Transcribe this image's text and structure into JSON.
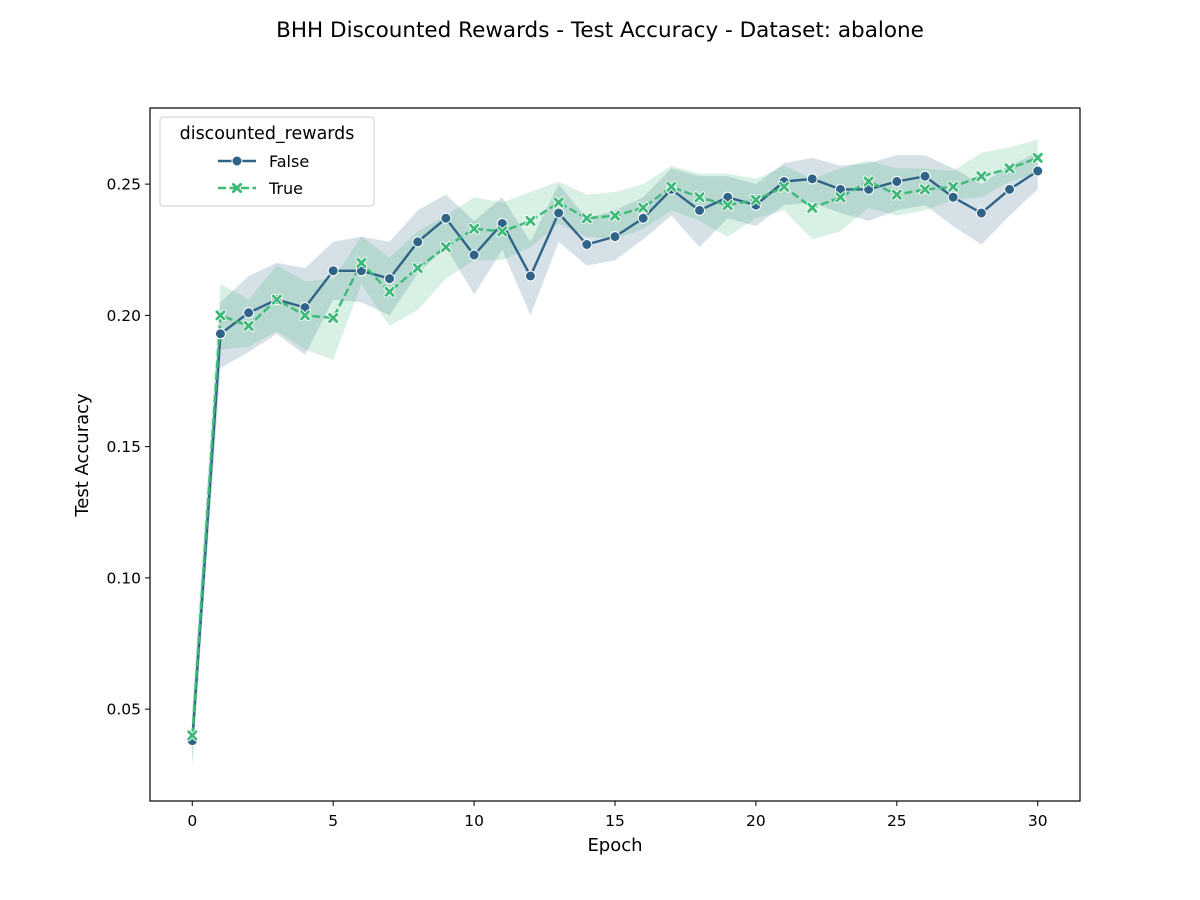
{
  "chart_data": {
    "type": "line",
    "title": "BHH Discounted Rewards - Test Accuracy - Dataset: abalone",
    "xlabel": "Epoch",
    "ylabel": "Test Accuracy",
    "xlim": [
      -1.5,
      31.5
    ],
    "ylim": [
      0.015,
      0.279
    ],
    "xticks": [
      0,
      5,
      10,
      15,
      20,
      25,
      30
    ],
    "xtick_labels": [
      "0",
      "5",
      "10",
      "15",
      "20",
      "25",
      "30"
    ],
    "yticks": [
      0.05,
      0.1,
      0.15,
      0.2,
      0.25
    ],
    "ytick_labels": [
      "0.05",
      "0.10",
      "0.15",
      "0.20",
      "0.25"
    ],
    "grid": false,
    "legend": {
      "title": "discounted_rewards",
      "placement": "top-left"
    },
    "x": [
      0,
      1,
      2,
      3,
      4,
      5,
      6,
      7,
      8,
      9,
      10,
      11,
      12,
      13,
      14,
      15,
      16,
      17,
      18,
      19,
      20,
      21,
      22,
      23,
      24,
      25,
      26,
      27,
      28,
      29,
      30
    ],
    "series": [
      {
        "name": "False",
        "color": "#2f6388",
        "marker": "circle",
        "dash": "solid",
        "values": [
          0.038,
          0.193,
          0.201,
          0.206,
          0.203,
          0.217,
          0.217,
          0.214,
          0.228,
          0.237,
          0.223,
          0.235,
          0.215,
          0.239,
          0.227,
          0.23,
          0.237,
          0.248,
          0.24,
          0.245,
          0.242,
          0.251,
          0.252,
          0.248,
          0.248,
          0.251,
          0.253,
          0.245,
          0.239,
          0.248,
          0.255
        ],
        "ci_low": [
          0.03,
          0.18,
          0.186,
          0.193,
          0.185,
          0.206,
          0.205,
          0.2,
          0.216,
          0.226,
          0.208,
          0.225,
          0.2,
          0.228,
          0.219,
          0.221,
          0.229,
          0.238,
          0.226,
          0.237,
          0.234,
          0.242,
          0.243,
          0.239,
          0.236,
          0.24,
          0.242,
          0.234,
          0.227,
          0.238,
          0.248
        ],
        "ci_high": [
          0.046,
          0.205,
          0.215,
          0.22,
          0.218,
          0.228,
          0.23,
          0.228,
          0.24,
          0.246,
          0.236,
          0.245,
          0.228,
          0.25,
          0.237,
          0.24,
          0.245,
          0.256,
          0.253,
          0.253,
          0.25,
          0.258,
          0.26,
          0.257,
          0.258,
          0.261,
          0.261,
          0.256,
          0.25,
          0.257,
          0.262
        ]
      },
      {
        "name": "True",
        "color": "#3dba78",
        "marker": "x",
        "dash": "dashed",
        "values": [
          0.04,
          0.2,
          0.196,
          0.206,
          0.2,
          0.199,
          0.22,
          0.209,
          0.218,
          0.226,
          0.233,
          0.232,
          0.236,
          0.243,
          0.237,
          0.238,
          0.241,
          0.249,
          0.245,
          0.242,
          0.244,
          0.249,
          0.241,
          0.245,
          0.251,
          0.246,
          0.248,
          0.249,
          0.253,
          0.256,
          0.26
        ],
        "ci_low": [
          0.027,
          0.187,
          0.188,
          0.194,
          0.187,
          0.183,
          0.212,
          0.196,
          0.202,
          0.214,
          0.221,
          0.221,
          0.226,
          0.235,
          0.23,
          0.229,
          0.233,
          0.24,
          0.236,
          0.23,
          0.237,
          0.24,
          0.229,
          0.232,
          0.241,
          0.238,
          0.24,
          0.244,
          0.245,
          0.251,
          0.254
        ],
        "ci_high": [
          0.052,
          0.212,
          0.206,
          0.219,
          0.213,
          0.214,
          0.23,
          0.222,
          0.232,
          0.238,
          0.245,
          0.243,
          0.247,
          0.251,
          0.246,
          0.247,
          0.25,
          0.257,
          0.254,
          0.254,
          0.252,
          0.257,
          0.252,
          0.256,
          0.259,
          0.256,
          0.256,
          0.255,
          0.262,
          0.264,
          0.267
        ]
      }
    ]
  }
}
